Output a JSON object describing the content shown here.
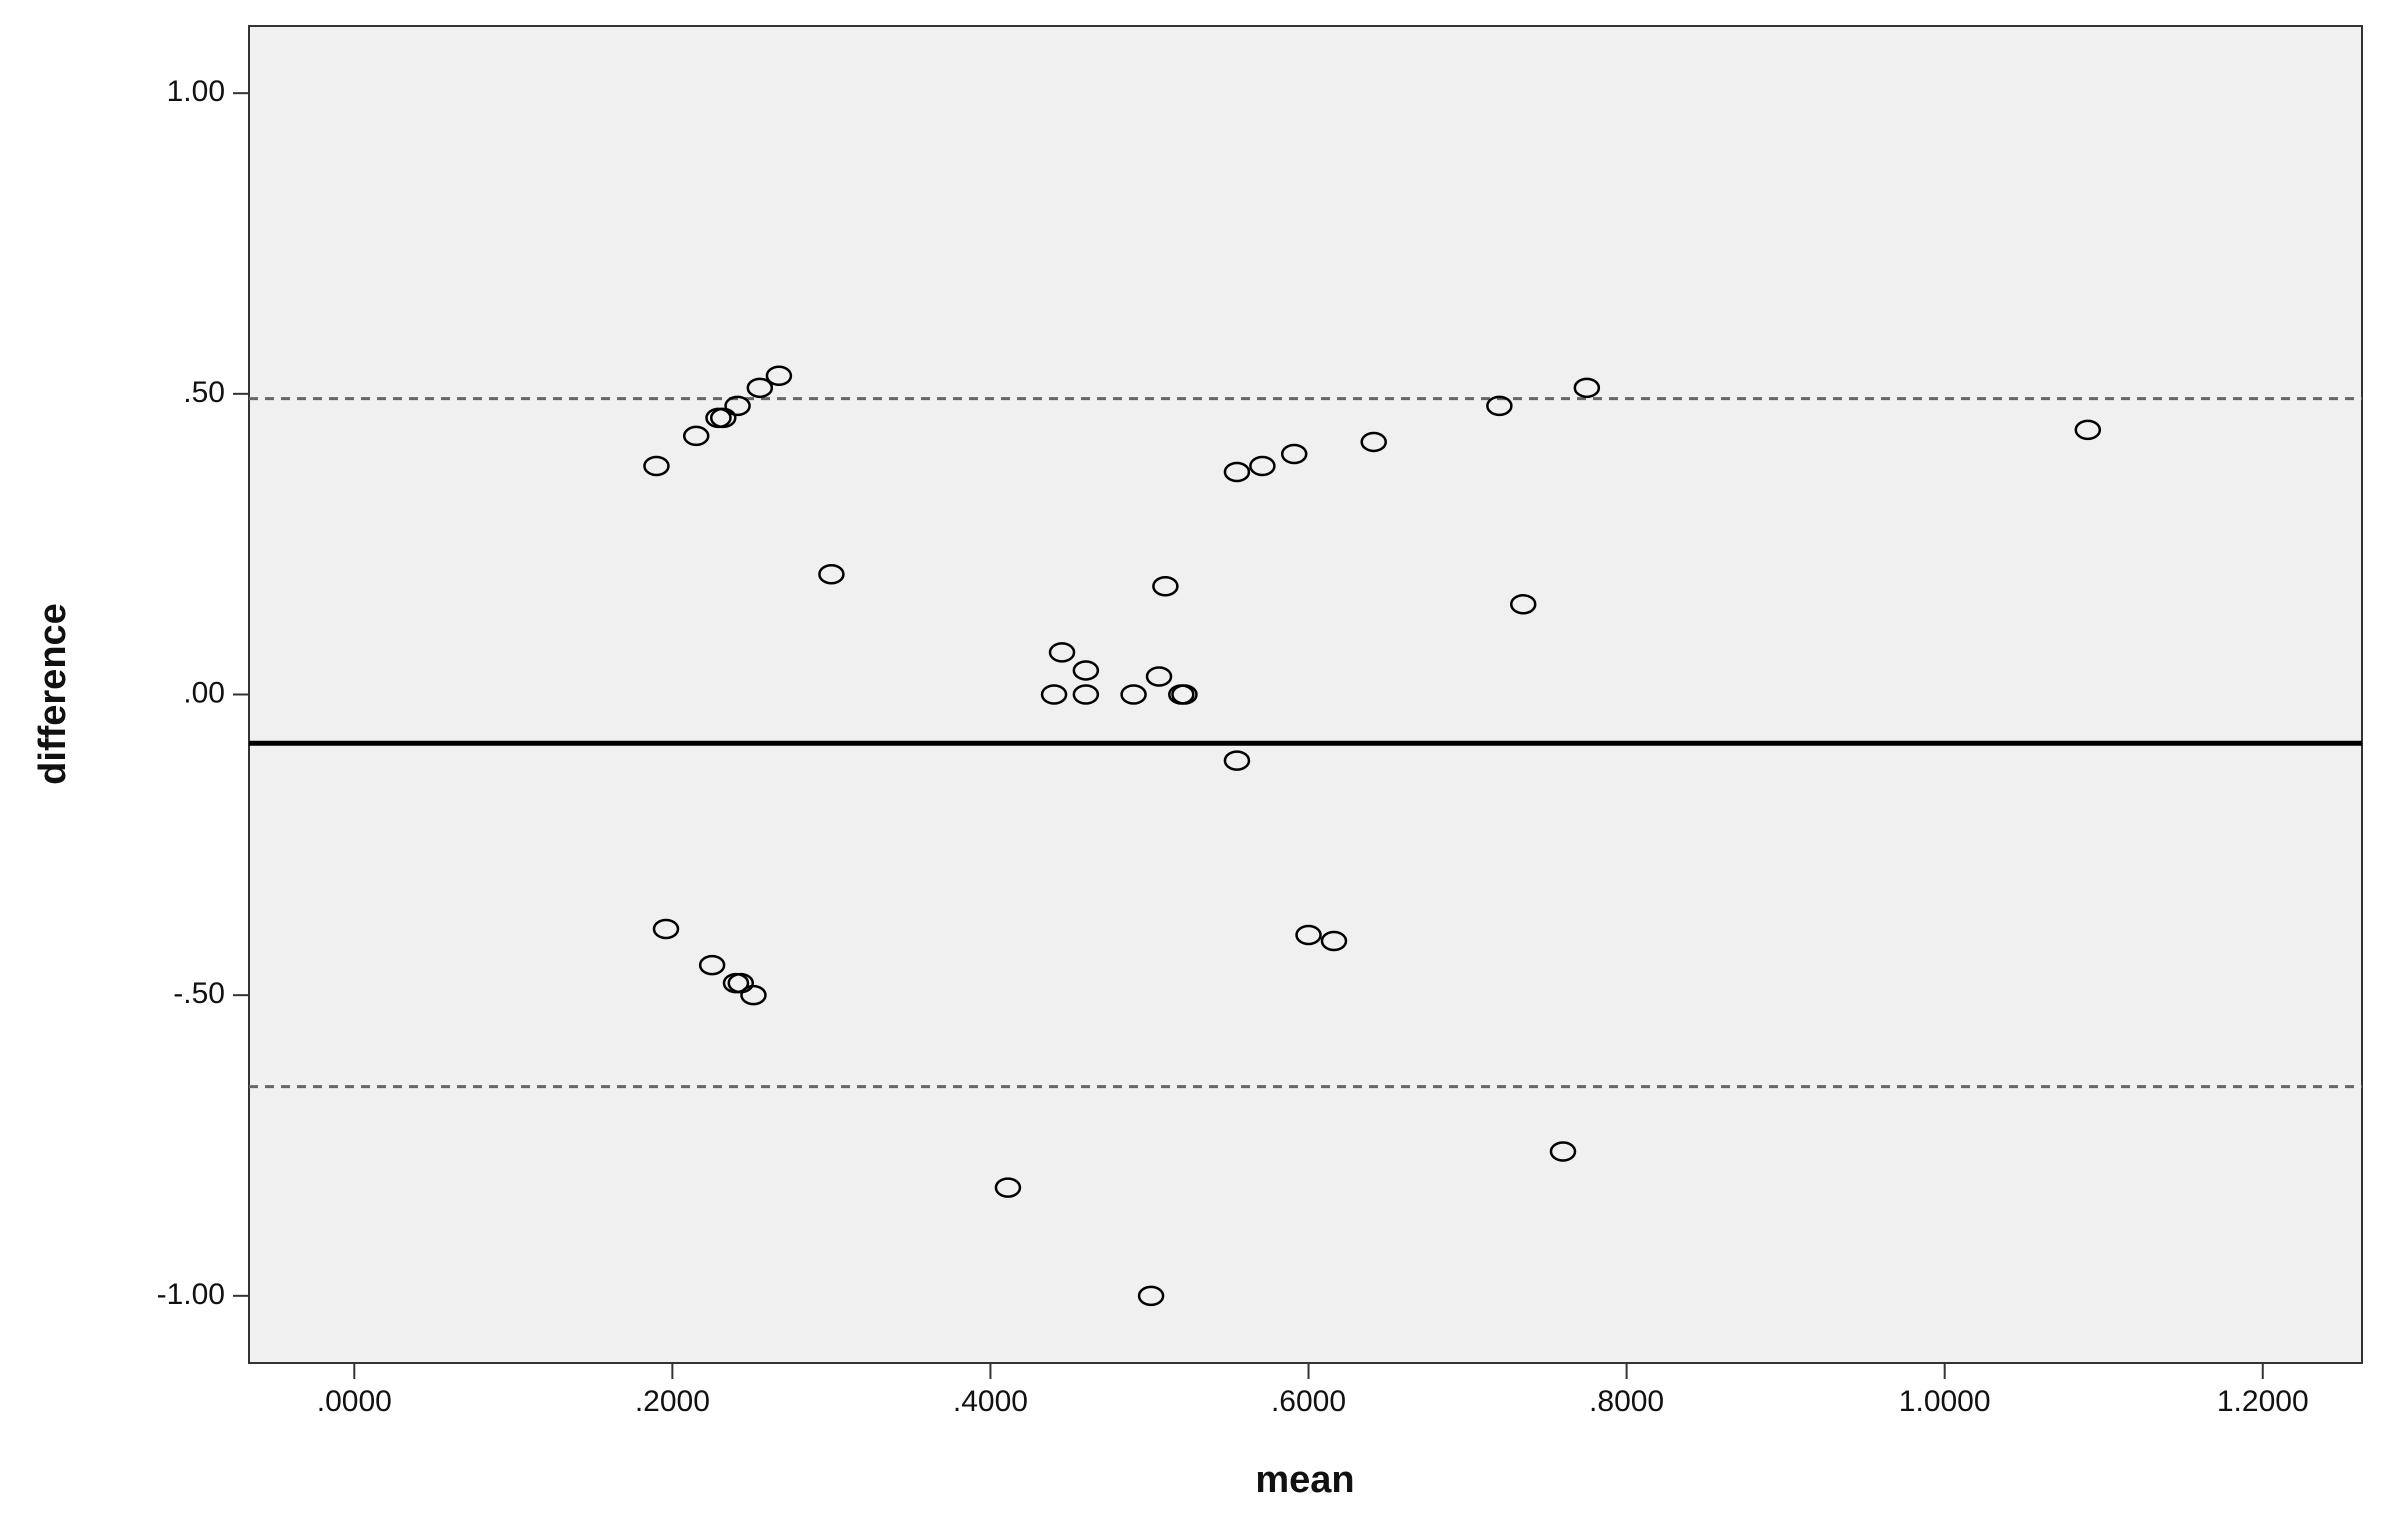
{
  "chart_data": {
    "type": "scatter",
    "x_label": "mean",
    "y_label": "difference",
    "x": [
      0.19,
      0.215,
      0.229,
      0.232,
      0.241,
      0.255,
      0.267,
      0.3,
      0.196,
      0.225,
      0.24,
      0.243,
      0.251,
      0.411,
      0.501,
      0.44,
      0.445,
      0.46,
      0.46,
      0.49,
      0.506,
      0.51,
      0.52,
      0.522,
      0.555,
      0.571,
      0.591,
      0.555,
      0.6,
      0.616,
      0.641,
      0.72,
      0.735,
      0.775,
      0.76,
      1.09
    ],
    "values": [
      0.38,
      0.43,
      0.46,
      0.46,
      0.48,
      0.51,
      0.53,
      0.2,
      -0.39,
      -0.45,
      -0.48,
      -0.48,
      -0.5,
      -0.82,
      -1.0,
      0,
      0.07,
      0.04,
      0,
      0,
      0.03,
      0.18,
      0,
      0,
      0.37,
      0.38,
      0.4,
      -0.11,
      -0.4,
      -0.41,
      0.42,
      0.48,
      0.15,
      0.51,
      -0.76,
      0.44
    ],
    "color": "#000000",
    "hlines": [
      {
        "y": 0.492,
        "dashed": true
      },
      {
        "y": -0.081,
        "dashed": false
      },
      {
        "y": -0.652,
        "dashed": true
      }
    ],
    "xlim": [
      -0.0662,
      1.2624
    ],
    "ylim": [
      -1.1117,
      1.1117
    ],
    "xticks": [
      {
        "value": 0,
        "label": ".0000"
      },
      {
        "value": 0.2,
        "label": ".2000"
      },
      {
        "value": 0.4,
        "label": ".4000"
      },
      {
        "value": 0.6,
        "label": ".6000"
      },
      {
        "value": 0.8,
        "label": ".8000"
      },
      {
        "value": 1.0,
        "label": "1.0000"
      },
      {
        "value": 1.2,
        "label": "1.2000"
      }
    ],
    "yticks": [
      {
        "value": 1.0,
        "label": "1.00"
      },
      {
        "value": 0.5,
        "label": ".50"
      },
      {
        "value": 0,
        "label": ".00"
      },
      {
        "value": -0.5,
        "label": "-.50"
      },
      {
        "value": -1.0,
        "label": "-1.00"
      }
    ],
    "grid": false
  }
}
